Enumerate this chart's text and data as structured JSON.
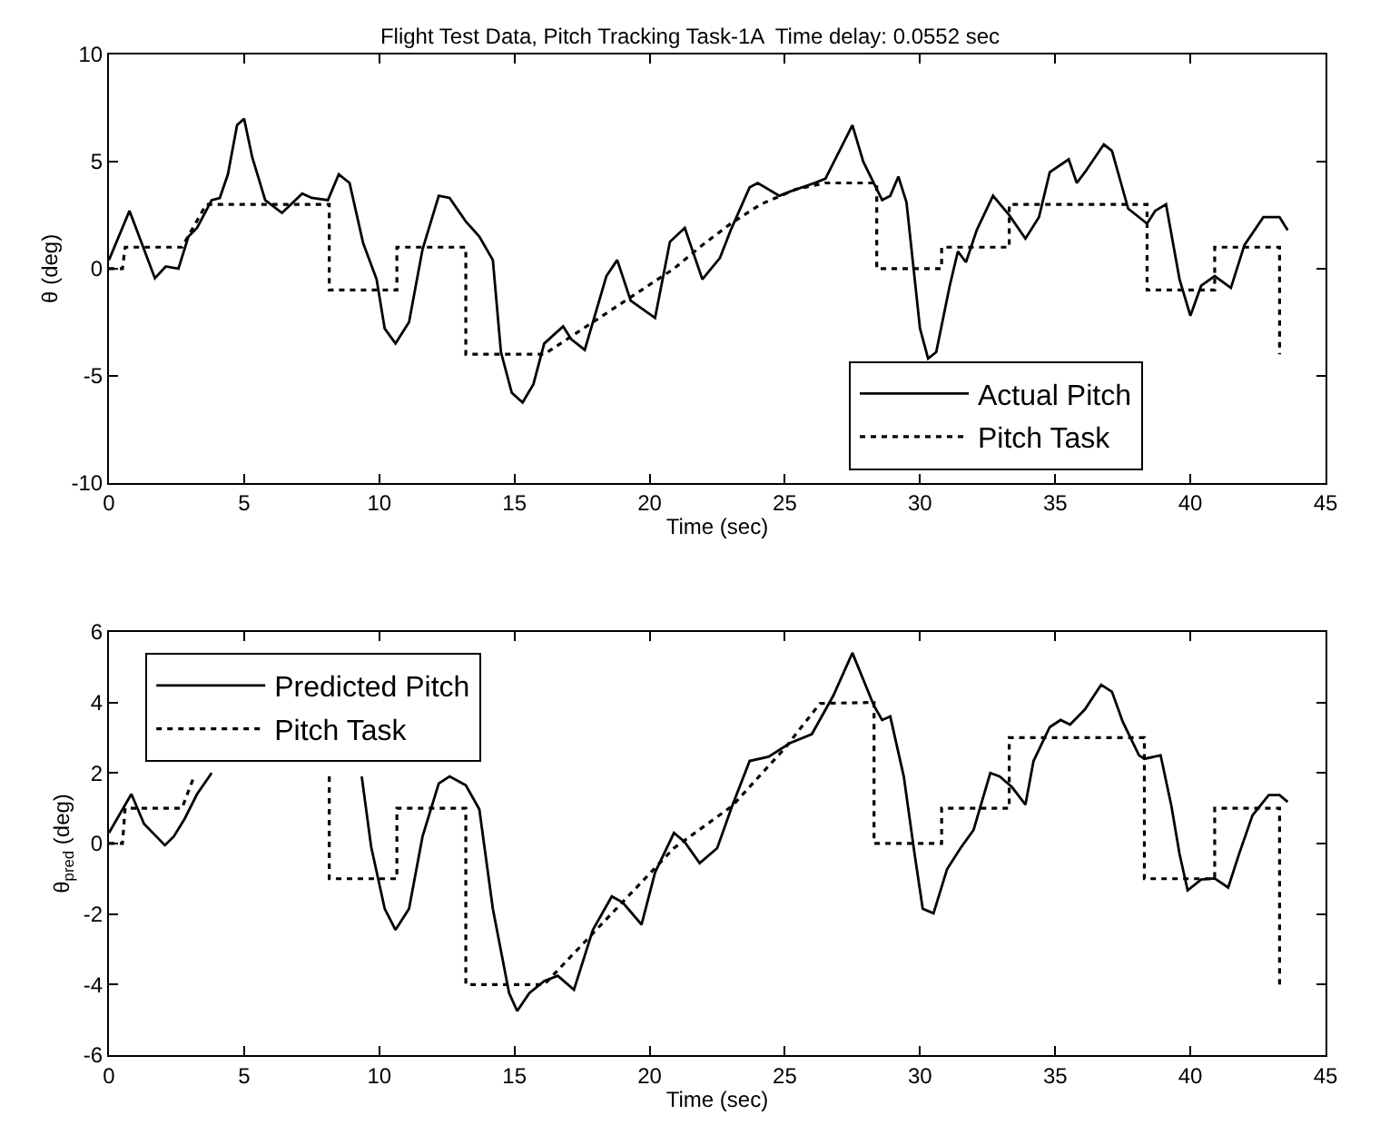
{
  "chart_data": [
    {
      "type": "line",
      "title": "Flight Test Data, Pitch Tracking Task-1A  Time delay: 0.0552 sec",
      "xlabel": "Time (sec)",
      "ylabel": "θ (deg)",
      "xlim": [
        0,
        45
      ],
      "xticks": [
        0,
        5,
        10,
        15,
        20,
        25,
        30,
        35,
        40,
        45
      ],
      "ylim": [
        -10,
        10
      ],
      "yticks": [
        -10,
        -5,
        0,
        5,
        10
      ],
      "grid": false,
      "legend": "bottom right",
      "marker": "none",
      "series": [
        {
          "name": "Actual Pitch",
          "color": "#000000",
          "line_style": "solid",
          "x": [
            0,
            0.76,
            1.7,
            2.1,
            2.57,
            2.94,
            3.26,
            3.8,
            4.1,
            4.4,
            4.74,
            5.0,
            5.3,
            5.78,
            6.4,
            7.15,
            7.5,
            8.1,
            8.5,
            8.9,
            9.4,
            9.9,
            10.2,
            10.6,
            11.1,
            11.6,
            12.2,
            12.6,
            13.2,
            13.7,
            14.2,
            14.5,
            14.9,
            15.3,
            15.7,
            16.1,
            16.8,
            17.1,
            17.6,
            18.4,
            18.8,
            19.3,
            20.2,
            20.75,
            21.3,
            21.95,
            22.6,
            23.0,
            23.7,
            24.0,
            24.8,
            25.2,
            26.1,
            26.5,
            27.5,
            27.9,
            28.6,
            28.9,
            29.2,
            29.5,
            30.0,
            30.3,
            30.6,
            31.1,
            31.4,
            31.7,
            32.1,
            32.7,
            33.3,
            33.9,
            34.4,
            34.8,
            35.5,
            35.8,
            36.1,
            36.8,
            37.1,
            37.7,
            38.4,
            38.7,
            39.1,
            39.6,
            40.0,
            40.4,
            40.9,
            41.5,
            42.0,
            42.7,
            43.3,
            43.6
          ],
          "values": [
            0.4,
            2.7,
            -0.45,
            0.1,
            0,
            1.5,
            1.9,
            3.2,
            3.3,
            4.4,
            6.7,
            7.0,
            5.2,
            3.2,
            2.6,
            3.5,
            3.3,
            3.2,
            4.4,
            4.0,
            1.2,
            -0.5,
            -2.8,
            -3.5,
            -2.5,
            0.9,
            3.4,
            3.3,
            2.2,
            1.5,
            0.4,
            -3.9,
            -5.8,
            -6.25,
            -5.4,
            -3.5,
            -2.7,
            -3.3,
            -3.8,
            -0.35,
            0.4,
            -1.5,
            -2.3,
            1.25,
            1.9,
            -0.5,
            0.5,
            1.8,
            3.8,
            4.0,
            3.4,
            3.6,
            4.0,
            4.2,
            6.7,
            5.0,
            3.2,
            3.4,
            4.3,
            3.1,
            -2.8,
            -4.2,
            -3.9,
            -0.8,
            0.8,
            0.3,
            1.8,
            3.4,
            2.5,
            1.4,
            2.4,
            4.5,
            5.1,
            4.0,
            4.5,
            5.8,
            5.5,
            2.8,
            2.1,
            2.7,
            3.0,
            -0.5,
            -2.2,
            -0.8,
            -0.35,
            -0.9,
            1.1,
            2.4,
            2.4,
            1.8
          ]
        },
        {
          "name": "Pitch Task",
          "color": "#000000",
          "line_style": "dotted",
          "x": [
            0,
            0.5,
            0.6,
            2.7,
            3.6,
            8.15,
            8.15,
            10.65,
            10.65,
            13.2,
            13.2,
            16.1,
            20.9,
            21.95,
            23.0,
            24.1,
            25.4,
            26.5,
            28.4,
            28.4,
            30.8,
            30.8,
            33.3,
            33.3,
            38.4,
            38.4,
            40.9,
            40.9,
            43.3,
            43.3
          ],
          "values": [
            0,
            0,
            1,
            1,
            3,
            3,
            -1,
            -1,
            1,
            1,
            -4,
            -4,
            0,
            1.1,
            2.1,
            3.0,
            3.7,
            4,
            4,
            0,
            0,
            1,
            1,
            3,
            3,
            -1,
            -1,
            1,
            1,
            -4
          ]
        }
      ]
    },
    {
      "type": "line",
      "xlabel": "Time (sec)",
      "ylabel": "θ$_{pred}$ (deg)",
      "xlim": [
        0,
        45
      ],
      "xticks": [
        0,
        5,
        10,
        15,
        20,
        25,
        30,
        35,
        40,
        45
      ],
      "ylim": [
        -6,
        6
      ],
      "yticks": [
        -6,
        -4,
        -2,
        0,
        2,
        4,
        6
      ],
      "grid": false,
      "legend": "top left",
      "marker": "none",
      "series": [
        {
          "name": "Predicted Pitch",
          "color": "#000000",
          "line_style": "solid",
          "x": [
            0,
            0.83,
            1.3,
            2.07,
            2.4,
            2.8,
            3.26,
            3.8,
            6.5,
            9.35,
            9.7,
            10.2,
            10.6,
            11.1,
            11.6,
            12.2,
            12.6,
            13.2,
            13.7,
            14.2,
            14.8,
            15.1,
            15.55,
            16.1,
            16.6,
            17.2,
            17.9,
            18.6,
            19.0,
            19.7,
            20.2,
            20.9,
            21.3,
            21.85,
            22.5,
            23.05,
            23.7,
            24.4,
            25.2,
            26.0,
            26.8,
            27.5,
            28.3,
            28.6,
            28.9,
            29.4,
            29.8,
            30.1,
            30.5,
            31.0,
            31.5,
            31.98,
            32.6,
            32.95,
            33.4,
            33.9,
            34.2,
            34.8,
            35.2,
            35.55,
            36.1,
            36.7,
            37.1,
            37.5,
            38.1,
            38.3,
            38.9,
            39.3,
            39.6,
            39.9,
            40.4,
            40.9,
            41.4,
            41.8,
            42.3,
            42.9,
            43.3,
            43.6
          ],
          "values": [
            0.3,
            1.4,
            0.55,
            -0.05,
            0.2,
            0.7,
            1.4,
            2.0,
            null,
            1.9,
            -0.1,
            -1.85,
            -2.45,
            -1.85,
            0.2,
            1.7,
            1.9,
            1.65,
            0.97,
            -1.85,
            -4.24,
            -4.75,
            -4.24,
            -3.9,
            -3.75,
            -4.15,
            -2.45,
            -1.5,
            -1.67,
            -2.3,
            -0.82,
            0.3,
            0.04,
            -0.56,
            -0.13,
            1.06,
            2.34,
            2.46,
            2.85,
            3.1,
            4.2,
            5.4,
            3.9,
            3.5,
            3.6,
            1.9,
            -0.3,
            -1.85,
            -1.98,
            -0.73,
            -0.13,
            0.38,
            2.0,
            1.9,
            1.6,
            1.1,
            2.34,
            3.3,
            3.5,
            3.37,
            3.8,
            4.5,
            4.3,
            3.45,
            2.5,
            2.4,
            2.5,
            1.06,
            -0.3,
            -1.33,
            -1.02,
            -0.99,
            -1.25,
            -0.3,
            0.8,
            1.37,
            1.37,
            1.18
          ]
        },
        {
          "name": "Pitch Task",
          "color": "#000000",
          "line_style": "dotted",
          "x": [
            0,
            0.5,
            0.6,
            2.7,
            3.15,
            5.5,
            8.15,
            8.15,
            10.65,
            10.65,
            13.2,
            13.2,
            16.1,
            20.9,
            23.05,
            25.0,
            26.3,
            28.3,
            28.3,
            30.8,
            30.8,
            33.3,
            33.3,
            38.3,
            38.3,
            40.9,
            40.9,
            43.3,
            43.3
          ],
          "values": [
            0,
            0,
            1,
            1,
            1.9,
            null,
            1.9,
            -1,
            -1,
            1,
            1,
            -4,
            -4,
            -0.13,
            1.06,
            2.7,
            3.97,
            4,
            0,
            0,
            1,
            1,
            3,
            3,
            -1,
            -1,
            1,
            1,
            -4
          ]
        }
      ]
    }
  ]
}
